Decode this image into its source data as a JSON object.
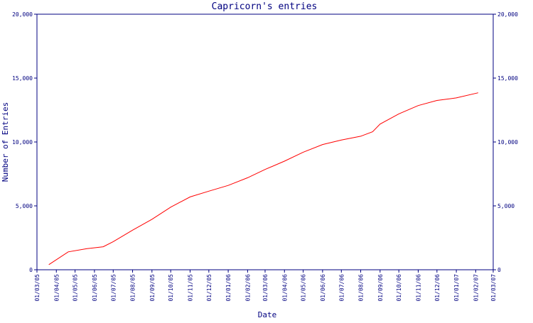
{
  "chart_data": {
    "type": "line",
    "title": "Capricorn's entries",
    "xlabel": "Date",
    "ylabel": "Number of Entries",
    "ylim": [
      0,
      20000
    ],
    "yticks": [
      0,
      5000,
      10000,
      15000,
      20000
    ],
    "ytick_labels": [
      "0",
      "5,000",
      "10,000",
      "15,000",
      "20,000"
    ],
    "xlim": [
      "2005-03-01",
      "2007-03-01"
    ],
    "xtick_labels": [
      "01/03/05",
      "01/04/05",
      "01/05/05",
      "01/06/05",
      "01/07/05",
      "01/08/05",
      "01/09/05",
      "01/10/05",
      "01/11/05",
      "01/12/05",
      "01/01/06",
      "01/02/06",
      "01/03/06",
      "01/04/06",
      "01/05/06",
      "01/06/06",
      "01/07/06",
      "01/08/06",
      "01/09/06",
      "01/10/06",
      "01/11/06",
      "01/12/06",
      "01/01/07",
      "01/02/07",
      "01/03/07"
    ],
    "xtick_dates": [
      "2005-03-01",
      "2005-04-01",
      "2005-05-01",
      "2005-06-01",
      "2005-07-01",
      "2005-08-01",
      "2005-09-01",
      "2005-10-01",
      "2005-11-01",
      "2005-12-01",
      "2006-01-01",
      "2006-02-01",
      "2006-03-01",
      "2006-04-01",
      "2006-05-01",
      "2006-06-01",
      "2006-07-01",
      "2006-08-01",
      "2006-09-01",
      "2006-10-01",
      "2006-11-01",
      "2006-12-01",
      "2007-01-01",
      "2007-02-01",
      "2007-03-01"
    ],
    "grid": false,
    "line_color": "#ff0000",
    "axis_color": "#000080",
    "series": [
      {
        "x": [
          "2005-03-20",
          "2005-04-20",
          "2005-05-20",
          "2005-06-15",
          "2005-07-01",
          "2005-08-01",
          "2005-09-01",
          "2005-10-01",
          "2005-11-01",
          "2005-12-01",
          "2006-01-01",
          "2006-02-01",
          "2006-03-01",
          "2006-04-01",
          "2006-05-01",
          "2006-06-01",
          "2006-07-01",
          "2006-08-01",
          "2006-08-20",
          "2006-09-01",
          "2006-10-01",
          "2006-11-01",
          "2006-12-01",
          "2007-01-01",
          "2007-02-05"
        ],
        "values": [
          400,
          1400,
          1650,
          1800,
          2200,
          3100,
          3950,
          4900,
          5700,
          6150,
          6600,
          7200,
          7850,
          8500,
          9200,
          9800,
          10150,
          10450,
          10800,
          11400,
          12200,
          12850,
          13250,
          13450,
          13850
        ]
      }
    ]
  }
}
